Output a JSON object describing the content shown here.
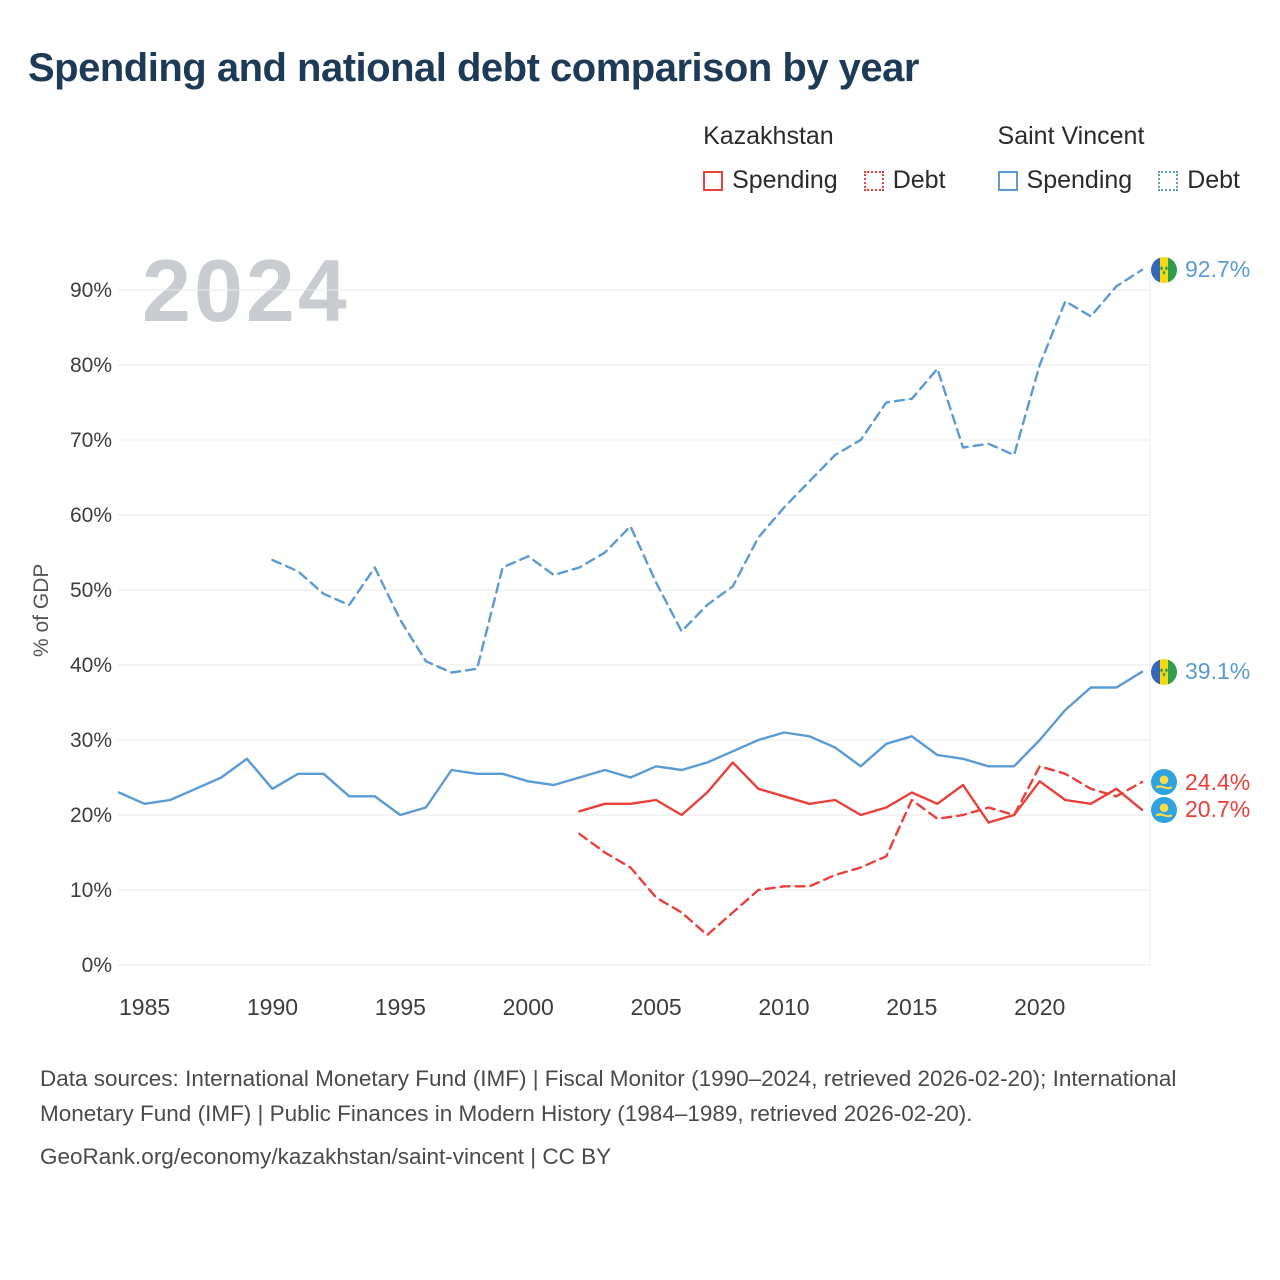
{
  "legend": {
    "groups": [
      {
        "country": "Kazakhstan",
        "items": [
          {
            "label": "Spending",
            "style": "solid",
            "color": "#e8403a"
          },
          {
            "label": "Debt",
            "style": "dotted",
            "color": "#e8403a"
          }
        ]
      },
      {
        "country": "Saint Vincent",
        "items": [
          {
            "label": "Spending",
            "style": "solid",
            "color": "#5b9bd5"
          },
          {
            "label": "Debt",
            "style": "dotted",
            "color": "#5b9bd5"
          }
        ]
      }
    ]
  },
  "watermark": "2024",
  "chart_data": {
    "type": "line",
    "title": "Spending and national debt comparison by year",
    "xlabel": "",
    "ylabel": "% of GDP",
    "ylim": [
      0,
      95
    ],
    "x_range": [
      1984,
      2024
    ],
    "x_ticks": [
      1985,
      1990,
      1995,
      2000,
      2005,
      2010,
      2015,
      2020
    ],
    "y_ticks": [
      0,
      10,
      20,
      30,
      40,
      50,
      60,
      70,
      80,
      90
    ],
    "y_tick_suffix": "%",
    "grid": true,
    "legend_position": "top-right",
    "series": [
      {
        "name": "Kazakhstan Spending",
        "color": "#e8403a",
        "style": "solid",
        "flag": "kazakhstan",
        "end_label": "20.7%",
        "points": [
          [
            2002,
            20.5
          ],
          [
            2003,
            21.5
          ],
          [
            2004,
            21.5
          ],
          [
            2005,
            22
          ],
          [
            2006,
            20
          ],
          [
            2007,
            23
          ],
          [
            2008,
            27
          ],
          [
            2009,
            23.5
          ],
          [
            2010,
            22.5
          ],
          [
            2011,
            21.5
          ],
          [
            2012,
            22
          ],
          [
            2013,
            20
          ],
          [
            2014,
            21
          ],
          [
            2015,
            23
          ],
          [
            2016,
            21.5
          ],
          [
            2017,
            24
          ],
          [
            2018,
            19
          ],
          [
            2019,
            20
          ],
          [
            2020,
            24.5
          ],
          [
            2021,
            22
          ],
          [
            2022,
            21.5
          ],
          [
            2023,
            23.5
          ],
          [
            2024,
            20.7
          ]
        ]
      },
      {
        "name": "Kazakhstan Debt",
        "color": "#e8403a",
        "style": "dashed",
        "flag": "kazakhstan",
        "end_label": "24.4%",
        "points": [
          [
            2002,
            17.5
          ],
          [
            2003,
            15
          ],
          [
            2004,
            13
          ],
          [
            2005,
            9
          ],
          [
            2006,
            7
          ],
          [
            2007,
            4
          ],
          [
            2008,
            7
          ],
          [
            2009,
            10
          ],
          [
            2010,
            10.5
          ],
          [
            2011,
            10.5
          ],
          [
            2012,
            12
          ],
          [
            2013,
            13
          ],
          [
            2014,
            14.5
          ],
          [
            2015,
            22
          ],
          [
            2016,
            19.5
          ],
          [
            2017,
            20
          ],
          [
            2018,
            21
          ],
          [
            2019,
            20
          ],
          [
            2020,
            26.5
          ],
          [
            2021,
            25.5
          ],
          [
            2022,
            23.5
          ],
          [
            2023,
            22.5
          ],
          [
            2024,
            24.4
          ]
        ]
      },
      {
        "name": "Saint Vincent Spending",
        "color": "#5b9bd5",
        "style": "solid",
        "flag": "saint-vincent",
        "end_label": "39.1%",
        "points": [
          [
            1984,
            23
          ],
          [
            1985,
            21.5
          ],
          [
            1986,
            22
          ],
          [
            1987,
            23.5
          ],
          [
            1988,
            25
          ],
          [
            1989,
            27.5
          ],
          [
            1990,
            23.5
          ],
          [
            1991,
            25.5
          ],
          [
            1992,
            25.5
          ],
          [
            1993,
            22.5
          ],
          [
            1994,
            22.5
          ],
          [
            1995,
            20
          ],
          [
            1996,
            21
          ],
          [
            1997,
            26
          ],
          [
            1998,
            25.5
          ],
          [
            1999,
            25.5
          ],
          [
            2000,
            24.5
          ],
          [
            2001,
            24
          ],
          [
            2002,
            25
          ],
          [
            2003,
            26
          ],
          [
            2004,
            25
          ],
          [
            2005,
            26.5
          ],
          [
            2006,
            26
          ],
          [
            2007,
            27
          ],
          [
            2008,
            28.5
          ],
          [
            2009,
            30
          ],
          [
            2010,
            31
          ],
          [
            2011,
            30.5
          ],
          [
            2012,
            29
          ],
          [
            2013,
            26.5
          ],
          [
            2014,
            29.5
          ],
          [
            2015,
            30.5
          ],
          [
            2016,
            28
          ],
          [
            2017,
            27.5
          ],
          [
            2018,
            26.5
          ],
          [
            2019,
            26.5
          ],
          [
            2020,
            30
          ],
          [
            2021,
            34
          ],
          [
            2022,
            37
          ],
          [
            2023,
            37
          ],
          [
            2024,
            39.1
          ]
        ]
      },
      {
        "name": "Saint Vincent Debt",
        "color": "#5b9bd5",
        "style": "dashed",
        "flag": "saint-vincent",
        "end_label": "92.7%",
        "points": [
          [
            1990,
            54
          ],
          [
            1991,
            52.5
          ],
          [
            1992,
            49.5
          ],
          [
            1993,
            48
          ],
          [
            1994,
            53
          ],
          [
            1995,
            46
          ],
          [
            1996,
            40.5
          ],
          [
            1997,
            39
          ],
          [
            1998,
            39.5
          ],
          [
            1999,
            53
          ],
          [
            2000,
            54.5
          ],
          [
            2001,
            52
          ],
          [
            2002,
            53
          ],
          [
            2003,
            55
          ],
          [
            2004,
            58.5
          ],
          [
            2005,
            51
          ],
          [
            2006,
            44.5
          ],
          [
            2007,
            48
          ],
          [
            2008,
            50.5
          ],
          [
            2009,
            57
          ],
          [
            2010,
            61
          ],
          [
            2011,
            64.5
          ],
          [
            2012,
            68
          ],
          [
            2013,
            70
          ],
          [
            2014,
            75
          ],
          [
            2015,
            75.5
          ],
          [
            2016,
            79.5
          ],
          [
            2017,
            69
          ],
          [
            2018,
            69.5
          ],
          [
            2019,
            68
          ],
          [
            2020,
            80
          ],
          [
            2021,
            88.5
          ],
          [
            2022,
            86.5
          ],
          [
            2023,
            90.5
          ],
          [
            2024,
            92.7
          ]
        ]
      }
    ]
  },
  "footer": {
    "sources": "Data sources: International Monetary Fund (IMF) | Fiscal Monitor (1990–2024, retrieved 2026-02-20); International Monetary Fund (IMF) | Public Finances in Modern History (1984–1989, retrieved 2026-02-20).",
    "attribution": "GeoRank.org/economy/kazakhstan/saint-vincent | CC BY"
  }
}
